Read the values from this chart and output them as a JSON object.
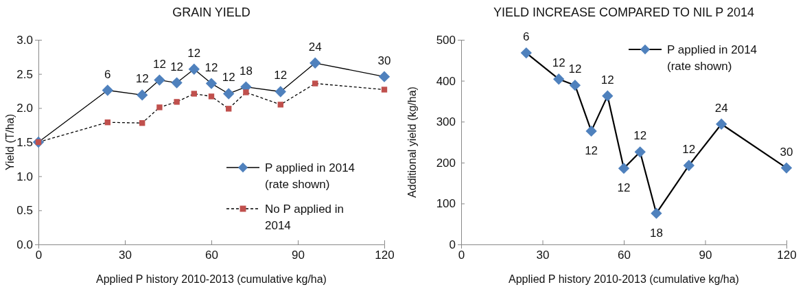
{
  "chart_data": [
    {
      "type": "line",
      "title": "GRAIN YIELD",
      "xlabel": "Applied P history 2010-2013  (cumulative kg/ha)",
      "ylabel": "Yield (T/ha)",
      "x": [
        0,
        24,
        36,
        42,
        48,
        54,
        60,
        66,
        72,
        84,
        96,
        120
      ],
      "xlim": [
        0,
        120
      ],
      "xticks": [
        0,
        30,
        60,
        90,
        120
      ],
      "ylim": [
        0,
        3
      ],
      "yticks": [
        {
          "value": 0,
          "label": "0.0"
        },
        0.5,
        {
          "value": 1,
          "label": "1.0"
        },
        1.5,
        {
          "value": 2,
          "label": "2.0"
        },
        2.5,
        {
          "value": 3,
          "label": "3.0"
        }
      ],
      "grid": false,
      "legend": "bottom right",
      "series": [
        {
          "name": "P applied in 2014 (rate shown)",
          "color": "#4f81bd",
          "marker": "diamond",
          "line_style": "solid",
          "values": [
            1.5,
            2.26,
            2.19,
            2.41,
            2.37,
            2.57,
            2.36,
            2.21,
            2.31,
            2.24,
            2.66,
            2.46
          ]
        },
        {
          "name": "No P applied in 2014",
          "color": "#c0504d",
          "marker": "square",
          "line_style": "dashed",
          "values": [
            1.5,
            1.79,
            1.78,
            2.01,
            2.09,
            2.21,
            2.17,
            1.99,
            2.23,
            2.05,
            2.36,
            2.27
          ]
        }
      ],
      "annotations": [
        {
          "text": "6",
          "x": 24,
          "y": 2.26
        },
        {
          "text": "12",
          "x": 36,
          "y": 2.19
        },
        {
          "text": "12",
          "x": 42,
          "y": 2.41
        },
        {
          "text": "12",
          "x": 48,
          "y": 2.37
        },
        {
          "text": "12",
          "x": 54,
          "y": 2.57
        },
        {
          "text": "12",
          "x": 60,
          "y": 2.36
        },
        {
          "text": "12",
          "x": 66,
          "y": 2.21
        },
        {
          "text": "18",
          "x": 72,
          "y": 2.31
        },
        {
          "text": "12",
          "x": 84,
          "y": 2.24
        },
        {
          "text": "24",
          "x": 96,
          "y": 2.66
        },
        {
          "text": "30",
          "x": 120,
          "y": 2.46
        }
      ]
    },
    {
      "type": "line",
      "title": "YIELD INCREASE COMPARED TO NIL P 2014",
      "xlabel": "Applied P history 2010-2013  (cumulative kg/ha)",
      "ylabel": "Additional yield (kg/ha)",
      "x": [
        24,
        36,
        42,
        48,
        54,
        60,
        66,
        72,
        84,
        96,
        120
      ],
      "xlim": [
        0,
        120
      ],
      "xticks": [
        0,
        30,
        60,
        90,
        120
      ],
      "ylim": [
        0,
        500
      ],
      "yticks": [
        0,
        100,
        200,
        300,
        400,
        500
      ],
      "grid": false,
      "legend": "top right",
      "series": [
        {
          "name": "P applied in 2014 (rate shown)",
          "color": "#4f81bd",
          "marker": "diamond",
          "line_style": "solid",
          "values": [
            468,
            404,
            389,
            277,
            363,
            186,
            226,
            76,
            193,
            294,
            187
          ]
        }
      ],
      "annotations": [
        {
          "text": "6",
          "x": 24,
          "y": 468
        },
        {
          "text": "12",
          "x": 36,
          "y": 404
        },
        {
          "text": "12",
          "x": 42,
          "y": 389
        },
        {
          "text": "12",
          "x": 48,
          "y": 277
        },
        {
          "text": "12",
          "x": 54,
          "y": 363
        },
        {
          "text": "12",
          "x": 60,
          "y": 186
        },
        {
          "text": "12",
          "x": 66,
          "y": 226
        },
        {
          "text": "18",
          "x": 72,
          "y": 76
        },
        {
          "text": "12",
          "x": 84,
          "y": 193
        },
        {
          "text": "24",
          "x": 96,
          "y": 294
        },
        {
          "text": "30",
          "x": 120,
          "y": 187
        }
      ]
    }
  ]
}
